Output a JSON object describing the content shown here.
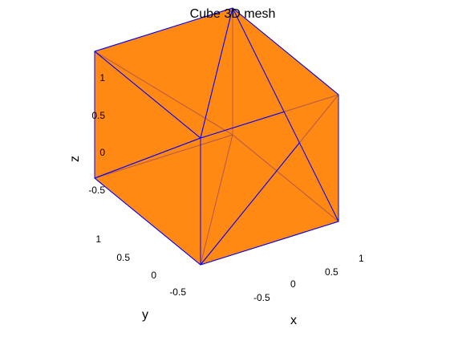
{
  "figure": {
    "title": "Cube 3D mesh",
    "face_color": "#ff7f00",
    "edge_color": "#0000ff"
  },
  "axes": {
    "x": {
      "label": "x",
      "ticks": [
        "-0.5",
        "0",
        "0.5",
        "1"
      ]
    },
    "y": {
      "label": "y",
      "ticks": [
        "-0.5",
        "0",
        "0.5",
        "1"
      ]
    },
    "z": {
      "label": "z",
      "ticks": [
        "-0.5",
        "0",
        "0.5",
        "1"
      ]
    }
  },
  "chart_data": {
    "type": "mesh",
    "title": "Cube 3D mesh",
    "xlabel": "x",
    "ylabel": "y",
    "zlabel": "z",
    "xlim": [
      -1,
      1
    ],
    "ylim": [
      -1,
      1
    ],
    "zlim": [
      -1,
      1
    ],
    "vertices": [
      [
        -1,
        -1,
        -1
      ],
      [
        1,
        -1,
        -1
      ],
      [
        1,
        1,
        -1
      ],
      [
        -1,
        1,
        -1
      ],
      [
        -1,
        -1,
        1
      ],
      [
        1,
        -1,
        1
      ],
      [
        1,
        1,
        1
      ],
      [
        -1,
        1,
        1
      ]
    ],
    "triangles": [
      [
        0,
        1,
        5
      ],
      [
        0,
        5,
        4
      ],
      [
        1,
        2,
        6
      ],
      [
        1,
        6,
        5
      ],
      [
        2,
        3,
        7
      ],
      [
        2,
        7,
        6
      ],
      [
        3,
        0,
        4
      ],
      [
        3,
        4,
        7
      ],
      [
        4,
        5,
        6
      ],
      [
        4,
        6,
        7
      ],
      [
        0,
        2,
        1
      ],
      [
        0,
        3,
        2
      ]
    ]
  }
}
